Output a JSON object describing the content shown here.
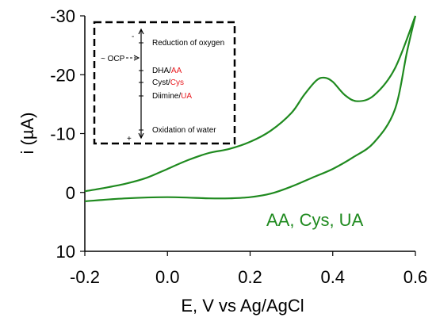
{
  "chart_data": {
    "type": "line",
    "xlabel": "E, V vs Ag/AgCl",
    "ylabel": "i (µA)",
    "xlim": [
      -0.2,
      0.6
    ],
    "ylim": [
      10,
      -30
    ],
    "y_axis_inverted": true,
    "x_ticks": [
      "-0.2",
      "0.0",
      "0.2",
      "0.4",
      "0.6"
    ],
    "y_ticks": [
      "-30",
      "-20",
      "-10",
      "0",
      "10"
    ],
    "grid": false,
    "line_color": "#1f8a1f",
    "annotation": "AA, Cys, UA",
    "series": [
      {
        "values": [
          [
            -0.2,
            -0.2
          ],
          [
            -0.15,
            -0.8
          ],
          [
            -0.1,
            -1.5
          ],
          [
            -0.05,
            -2.5
          ],
          [
            0.0,
            -4.0
          ],
          [
            0.05,
            -5.5
          ],
          [
            0.1,
            -6.7
          ],
          [
            0.15,
            -7.4
          ],
          [
            0.2,
            -8.6
          ],
          [
            0.25,
            -10.5
          ],
          [
            0.3,
            -13.5
          ],
          [
            0.33,
            -16.5
          ],
          [
            0.36,
            -19.0
          ],
          [
            0.38,
            -19.5
          ],
          [
            0.4,
            -18.8
          ],
          [
            0.43,
            -16.5
          ],
          [
            0.46,
            -15.5
          ],
          [
            0.5,
            -16.5
          ],
          [
            0.55,
            -21.0
          ],
          [
            0.6,
            -30.0
          ]
        ]
      },
      {
        "values": [
          [
            0.6,
            -30.0
          ],
          [
            0.58,
            -24.0
          ],
          [
            0.55,
            -14.0
          ],
          [
            0.5,
            -8.5
          ],
          [
            0.45,
            -6.0
          ],
          [
            0.4,
            -4.0
          ],
          [
            0.35,
            -2.5
          ],
          [
            0.3,
            -1.0
          ],
          [
            0.25,
            0.2
          ],
          [
            0.2,
            0.8
          ],
          [
            0.15,
            1.0
          ],
          [
            0.1,
            1.0
          ],
          [
            0.0,
            0.8
          ],
          [
            -0.1,
            1.0
          ],
          [
            -0.2,
            1.5
          ]
        ]
      }
    ],
    "inset": {
      "top_sign": "-",
      "bottom_sign": "+",
      "ocp_label": "~ OCP",
      "ocp_color": "#e8191e",
      "entries": [
        {
          "prefix": "Reduction of oxygen",
          "highlight": ""
        },
        {
          "prefix": "DHA/",
          "highlight": "AA"
        },
        {
          "prefix": "Cyst/",
          "highlight": "Cys"
        },
        {
          "prefix": "Diimine/",
          "highlight": "UA"
        },
        {
          "prefix": "Oxidation of water",
          "highlight": ""
        }
      ]
    }
  }
}
